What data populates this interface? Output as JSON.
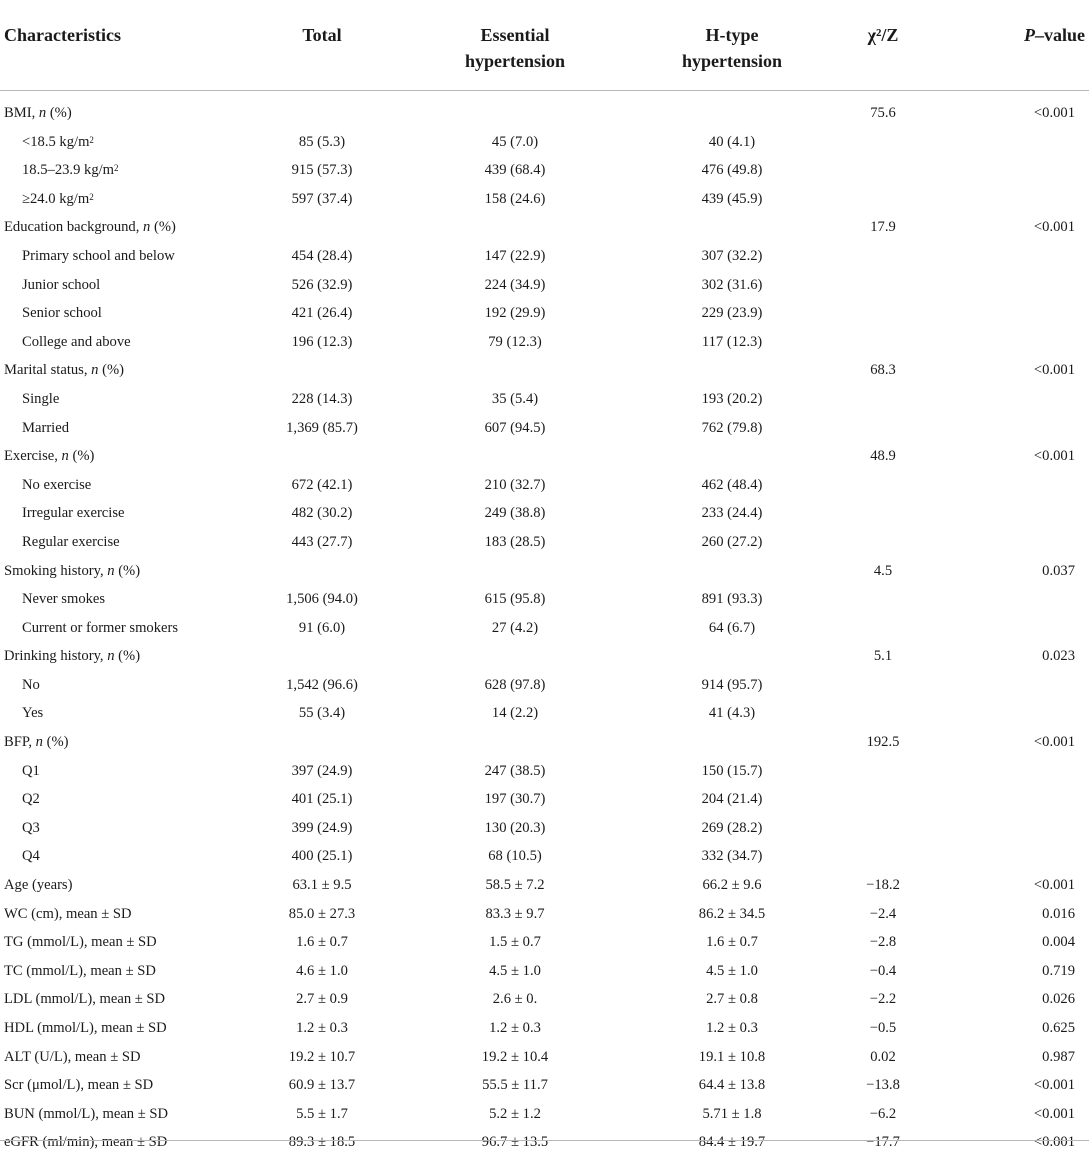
{
  "header": {
    "characteristics": "Characteristics",
    "total": "Total",
    "essential_line1": "Essential",
    "essential_line2": "hypertension",
    "htype_line1": "H-type",
    "htype_line2": "hypertension",
    "chi": "χ²/Z",
    "p_italic": "P",
    "p_rest": "–value"
  },
  "rows": [
    {
      "pre": "BMI, ",
      "ital": "n",
      "post": " (%)",
      "sub": false,
      "total": "",
      "ess": "",
      "htype": "",
      "chi": "75.6",
      "p": "<0.001"
    },
    {
      "pre": "<18.5 kg/m",
      "sup": "2",
      "sub": true,
      "total": "85 (5.3)",
      "ess": "45 (7.0)",
      "htype": "40 (4.1)",
      "chi": "",
      "p": ""
    },
    {
      "pre": "18.5–23.9 kg/m",
      "sup": "2",
      "sub": true,
      "total": "915 (57.3)",
      "ess": "439 (68.4)",
      "htype": "476 (49.8)",
      "chi": "",
      "p": ""
    },
    {
      "pre": "≥24.0 kg/m",
      "sup": "2",
      "sub": true,
      "total": "597 (37.4)",
      "ess": "158 (24.6)",
      "htype": "439 (45.9)",
      "chi": "",
      "p": ""
    },
    {
      "pre": "Education background, ",
      "ital": "n",
      "post": " (%)",
      "sub": false,
      "total": "",
      "ess": "",
      "htype": "",
      "chi": "17.9",
      "p": "<0.001"
    },
    {
      "pre": "Primary school and below",
      "sub": true,
      "total": "454 (28.4)",
      "ess": "147 (22.9)",
      "htype": "307 (32.2)",
      "chi": "",
      "p": ""
    },
    {
      "pre": "Junior school",
      "sub": true,
      "total": "526 (32.9)",
      "ess": "224 (34.9)",
      "htype": "302 (31.6)",
      "chi": "",
      "p": ""
    },
    {
      "pre": "Senior school",
      "sub": true,
      "total": "421 (26.4)",
      "ess": "192 (29.9)",
      "htype": "229 (23.9)",
      "chi": "",
      "p": ""
    },
    {
      "pre": "College and above",
      "sub": true,
      "total": "196 (12.3)",
      "ess": "79 (12.3)",
      "htype": "117 (12.3)",
      "chi": "",
      "p": ""
    },
    {
      "pre": "Marital status, ",
      "ital": "n",
      "post": " (%)",
      "sub": false,
      "total": "",
      "ess": "",
      "htype": "",
      "chi": "68.3",
      "p": "<0.001"
    },
    {
      "pre": "Single",
      "sub": true,
      "total": "228 (14.3)",
      "ess": "35 (5.4)",
      "htype": "193 (20.2)",
      "chi": "",
      "p": ""
    },
    {
      "pre": "Married",
      "sub": true,
      "total": "1,369 (85.7)",
      "ess": "607 (94.5)",
      "htype": "762 (79.8)",
      "chi": "",
      "p": ""
    },
    {
      "pre": "Exercise, ",
      "ital": "n",
      "post": " (%)",
      "sub": false,
      "total": "",
      "ess": "",
      "htype": "",
      "chi": "48.9",
      "p": "<0.001"
    },
    {
      "pre": "No exercise",
      "sub": true,
      "total": "672 (42.1)",
      "ess": "210 (32.7)",
      "htype": "462 (48.4)",
      "chi": "",
      "p": ""
    },
    {
      "pre": "Irregular exercise",
      "sub": true,
      "total": "482 (30.2)",
      "ess": "249 (38.8)",
      "htype": "233 (24.4)",
      "chi": "",
      "p": ""
    },
    {
      "pre": "Regular exercise",
      "sub": true,
      "total": "443 (27.7)",
      "ess": "183 (28.5)",
      "htype": "260 (27.2)",
      "chi": "",
      "p": ""
    },
    {
      "pre": "Smoking history, ",
      "ital": "n",
      "post": " (%)",
      "sub": false,
      "total": "",
      "ess": "",
      "htype": "",
      "chi": "4.5",
      "p": "0.037"
    },
    {
      "pre": "Never smokes",
      "sub": true,
      "total": "1,506 (94.0)",
      "ess": "615 (95.8)",
      "htype": "891 (93.3)",
      "chi": "",
      "p": ""
    },
    {
      "pre": "Current or former smokers",
      "sub": true,
      "total": "91 (6.0)",
      "ess": "27 (4.2)",
      "htype": "64 (6.7)",
      "chi": "",
      "p": ""
    },
    {
      "pre": "Drinking history, ",
      "ital": "n",
      "post": " (%)",
      "sub": false,
      "total": "",
      "ess": "",
      "htype": "",
      "chi": "5.1",
      "p": "0.023"
    },
    {
      "pre": "No",
      "sub": true,
      "total": "1,542 (96.6)",
      "ess": "628 (97.8)",
      "htype": "914 (95.7)",
      "chi": "",
      "p": ""
    },
    {
      "pre": "Yes",
      "sub": true,
      "total": "55 (3.4)",
      "ess": "14 (2.2)",
      "htype": "41 (4.3)",
      "chi": "",
      "p": ""
    },
    {
      "pre": "BFP, ",
      "ital": "n",
      "post": " (%)",
      "sub": false,
      "total": "",
      "ess": "",
      "htype": "",
      "chi": "192.5",
      "p": "<0.001"
    },
    {
      "pre": "Q1",
      "sub": true,
      "total": "397 (24.9)",
      "ess": "247 (38.5)",
      "htype": "150 (15.7)",
      "chi": "",
      "p": ""
    },
    {
      "pre": "Q2",
      "sub": true,
      "total": "401 (25.1)",
      "ess": "197 (30.7)",
      "htype": "204 (21.4)",
      "chi": "",
      "p": ""
    },
    {
      "pre": "Q3",
      "sub": true,
      "total": "399 (24.9)",
      "ess": "130 (20.3)",
      "htype": "269 (28.2)",
      "chi": "",
      "p": ""
    },
    {
      "pre": "Q4",
      "sub": true,
      "total": "400 (25.1)",
      "ess": "68 (10.5)",
      "htype": "332 (34.7)",
      "chi": "",
      "p": ""
    },
    {
      "pre": "Age (years)",
      "sub": false,
      "total": "63.1 ± 9.5",
      "ess": "58.5 ± 7.2",
      "htype": "66.2 ± 9.6",
      "chi": "−18.2",
      "p": "<0.001"
    },
    {
      "pre": "WC (cm), mean ± SD",
      "sub": false,
      "total": "85.0 ± 27.3",
      "ess": "83.3 ± 9.7",
      "htype": "86.2 ± 34.5",
      "chi": "−2.4",
      "p": "0.016"
    },
    {
      "pre": "TG (mmol/L), mean ± SD",
      "sub": false,
      "total": "1.6 ± 0.7",
      "ess": "1.5 ± 0.7",
      "htype": "1.6 ± 0.7",
      "chi": "−2.8",
      "p": "0.004"
    },
    {
      "pre": "TC (mmol/L), mean ± SD",
      "sub": false,
      "total": "4.6 ± 1.0",
      "ess": "4.5 ± 1.0",
      "htype": "4.5 ± 1.0",
      "chi": "−0.4",
      "p": "0.719"
    },
    {
      "pre": "LDL (mmol/L), mean ± SD",
      "sub": false,
      "total": "2.7 ± 0.9",
      "ess": "2.6 ± 0.",
      "htype": "2.7 ± 0.8",
      "chi": "−2.2",
      "p": "0.026"
    },
    {
      "pre": "HDL (mmol/L), mean ± SD",
      "sub": false,
      "total": "1.2 ± 0.3",
      "ess": "1.2 ± 0.3",
      "htype": "1.2 ± 0.3",
      "chi": "−0.5",
      "p": "0.625"
    },
    {
      "pre": "ALT (U/L), mean ± SD",
      "sub": false,
      "total": "19.2 ± 10.7",
      "ess": "19.2 ± 10.4",
      "htype": "19.1 ± 10.8",
      "chi": "0.02",
      "p": "0.987"
    },
    {
      "pre": "Scr (μmol/L), mean ± SD",
      "sub": false,
      "total": "60.9 ± 13.7",
      "ess": "55.5 ± 11.7",
      "htype": "64.4 ± 13.8",
      "chi": "−13.8",
      "p": "<0.001"
    },
    {
      "pre": "BUN (mmol/L), mean ± SD",
      "sub": false,
      "total": "5.5 ± 1.7",
      "ess": "5.2 ± 1.2",
      "htype": "5.71 ± 1.8",
      "chi": "−6.2",
      "p": "<0.001"
    },
    {
      "pre": "eGFR (ml/min), mean ± SD",
      "sub": false,
      "total": "89.3 ± 18.5",
      "ess": "96.7 ± 13.5",
      "htype": "84.4 ± 19.7",
      "chi": "−17.7",
      "p": "<0.001"
    }
  ]
}
